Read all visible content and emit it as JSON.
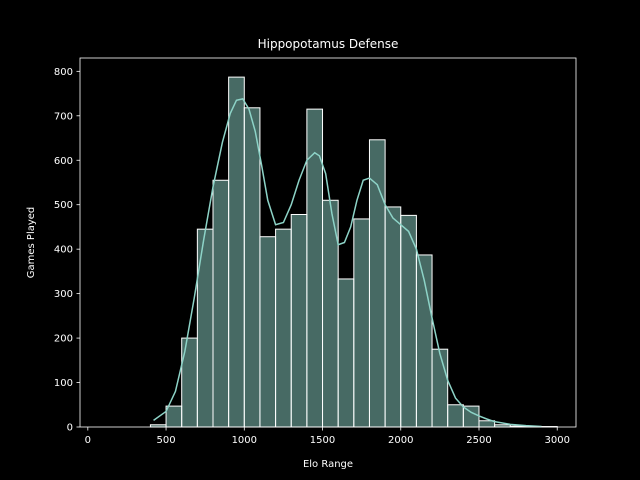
{
  "chart_data": {
    "type": "bar",
    "subtype": "histogram-with-kde",
    "title": "Hippopotamus Defense",
    "xlabel": "Elo Range",
    "ylabel": "Games Played",
    "xlim": [
      -50,
      3120
    ],
    "ylim": [
      0,
      830
    ],
    "x_ticks": [
      0,
      500,
      1000,
      1500,
      2000,
      2500,
      3000
    ],
    "y_ticks": [
      0,
      100,
      200,
      300,
      400,
      500,
      600,
      700,
      800
    ],
    "grid": false,
    "legend": null,
    "bin_width": 100,
    "bins": [
      {
        "start": 100,
        "end": 200,
        "count": 0
      },
      {
        "start": 200,
        "end": 300,
        "count": 0
      },
      {
        "start": 300,
        "end": 400,
        "count": 0
      },
      {
        "start": 400,
        "end": 500,
        "count": 5
      },
      {
        "start": 500,
        "end": 600,
        "count": 47
      },
      {
        "start": 600,
        "end": 700,
        "count": 200
      },
      {
        "start": 700,
        "end": 800,
        "count": 445
      },
      {
        "start": 800,
        "end": 900,
        "count": 555
      },
      {
        "start": 900,
        "end": 1000,
        "count": 787
      },
      {
        "start": 1000,
        "end": 1100,
        "count": 718
      },
      {
        "start": 1100,
        "end": 1200,
        "count": 428
      },
      {
        "start": 1200,
        "end": 1300,
        "count": 445
      },
      {
        "start": 1300,
        "end": 1400,
        "count": 478
      },
      {
        "start": 1400,
        "end": 1500,
        "count": 715
      },
      {
        "start": 1500,
        "end": 1600,
        "count": 510
      },
      {
        "start": 1600,
        "end": 1700,
        "count": 333
      },
      {
        "start": 1700,
        "end": 1800,
        "count": 468
      },
      {
        "start": 1800,
        "end": 1900,
        "count": 646
      },
      {
        "start": 1900,
        "end": 2000,
        "count": 495
      },
      {
        "start": 2000,
        "end": 2100,
        "count": 476
      },
      {
        "start": 2100,
        "end": 2200,
        "count": 387
      },
      {
        "start": 2200,
        "end": 2300,
        "count": 175
      },
      {
        "start": 2300,
        "end": 2400,
        "count": 50
      },
      {
        "start": 2400,
        "end": 2500,
        "count": 47
      },
      {
        "start": 2500,
        "end": 2600,
        "count": 14
      },
      {
        "start": 2600,
        "end": 2700,
        "count": 5
      },
      {
        "start": 2700,
        "end": 2800,
        "count": 2
      },
      {
        "start": 2800,
        "end": 2900,
        "count": 1
      },
      {
        "start": 2900,
        "end": 3000,
        "count": 1
      }
    ],
    "kde": {
      "x": [
        420,
        500,
        560,
        620,
        680,
        740,
        800,
        860,
        910,
        950,
        990,
        1030,
        1070,
        1110,
        1150,
        1200,
        1250,
        1300,
        1350,
        1400,
        1450,
        1480,
        1520,
        1560,
        1600,
        1640,
        1680,
        1720,
        1760,
        1800,
        1850,
        1900,
        1950,
        2000,
        2050,
        2100,
        2150,
        2200,
        2250,
        2300,
        2350,
        2400,
        2450,
        2500,
        2550,
        2600,
        2700,
        2800,
        2900
      ],
      "y": [
        15,
        35,
        80,
        170,
        290,
        420,
        540,
        640,
        705,
        735,
        738,
        715,
        665,
        590,
        510,
        455,
        460,
        500,
        555,
        600,
        617,
        610,
        570,
        480,
        410,
        415,
        450,
        510,
        555,
        560,
        545,
        500,
        470,
        455,
        440,
        400,
        330,
        245,
        165,
        105,
        65,
        45,
        33,
        25,
        18,
        12,
        6,
        3,
        1
      ]
    },
    "colors": {
      "background": "#000000",
      "bar_fill": "#8dd3c7",
      "bar_fill_opacity": 0.5,
      "bar_edge": "#ffffff",
      "kde_line": "#8dd3c7",
      "axis": "#ffffff",
      "text": "#ffffff"
    }
  }
}
